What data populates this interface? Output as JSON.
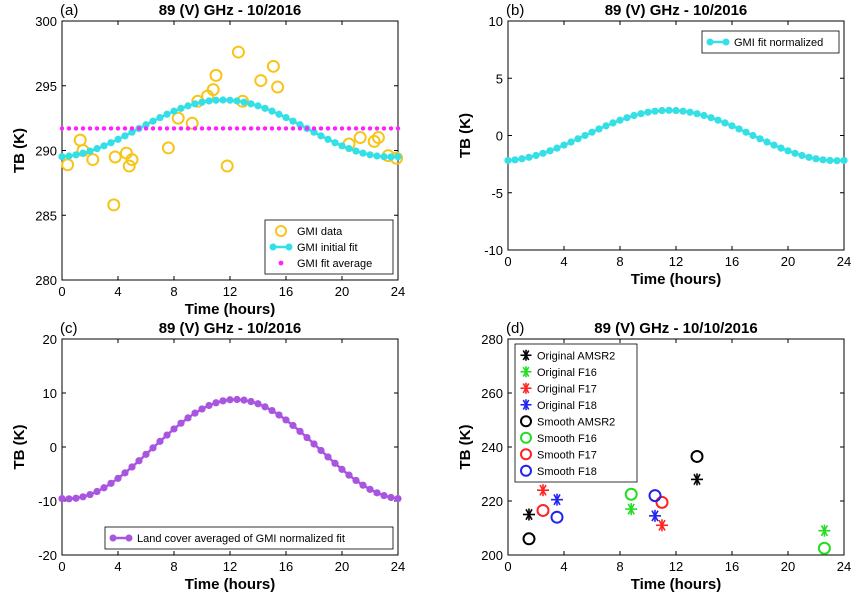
{
  "chart_data": [
    {
      "panel": "(a)",
      "type": "line",
      "title": "89 (V) GHz - 10/2016",
      "xlabel": "Time (hours)",
      "ylabel": "TB (K)",
      "xlim": [
        0,
        24
      ],
      "ylim": [
        280,
        300
      ],
      "xticks": [
        0,
        4,
        8,
        12,
        16,
        20,
        24
      ],
      "yticks": [
        280,
        285,
        290,
        295,
        300
      ],
      "legend_position": "bottom-right",
      "series": [
        {
          "name": "GMI data",
          "kind": "scatter",
          "color": "#f7c519",
          "marker": "circle-open",
          "x": [
            0.4,
            1.3,
            1.5,
            2.2,
            3.7,
            3.8,
            4.6,
            4.8,
            5.0,
            7.6,
            8.3,
            9.3,
            9.7,
            10.4,
            10.8,
            11.0,
            11.8,
            12.6,
            12.9,
            14.2,
            15.1,
            15.4,
            20.5,
            21.3,
            22.3,
            22.6,
            23.3,
            23.9
          ],
          "y": [
            288.9,
            290.8,
            290.0,
            289.3,
            285.8,
            289.5,
            289.8,
            288.8,
            289.3,
            290.2,
            292.5,
            292.1,
            293.8,
            294.2,
            294.7,
            295.8,
            288.8,
            297.6,
            293.8,
            295.4,
            296.5,
            294.9,
            290.5,
            291.0,
            290.7,
            291.0,
            289.6,
            289.4
          ]
        },
        {
          "name": "GMI initial fit",
          "kind": "line-marker",
          "color": "#34e0e6",
          "marker": "circle-filled",
          "mean": 291.7,
          "amplitude": 2.2,
          "phase_hours": 11.5
        },
        {
          "name": "GMI fit average",
          "kind": "marker-line",
          "color": "#ff22ff",
          "marker": "dot",
          "value": 291.7
        }
      ]
    },
    {
      "panel": "(b)",
      "type": "line",
      "title": "89 (V) GHz - 10/2016",
      "xlabel": "Time (hours)",
      "ylabel": "TB (K)",
      "xlim": [
        0,
        24
      ],
      "ylim": [
        -10,
        10
      ],
      "xticks": [
        0,
        4,
        8,
        12,
        16,
        20,
        24
      ],
      "yticks": [
        -10,
        -5,
        0,
        5,
        10
      ],
      "legend_position": "top-right",
      "series": [
        {
          "name": "GMI fit normalized",
          "kind": "line-marker",
          "color": "#34e0e6",
          "marker": "circle-filled",
          "mean": 0,
          "amplitude": 2.2,
          "phase_hours": 11.5
        }
      ]
    },
    {
      "panel": "(c)",
      "type": "line",
      "title": "89 (V) GHz - 10/2016",
      "xlabel": "Time (hours)",
      "ylabel": "TB (K)",
      "xlim": [
        0,
        24
      ],
      "ylim": [
        -20,
        20
      ],
      "xticks": [
        0,
        4,
        8,
        12,
        16,
        20,
        24
      ],
      "yticks": [
        -20,
        -10,
        0,
        10,
        20
      ],
      "legend_position": "bottom-right",
      "series": [
        {
          "name": "Land cover averaged of GMI normalized fit",
          "kind": "line-marker",
          "color": "#a855e0",
          "marker": "circle-filled",
          "mean": -0.4,
          "amplitude": 9.2,
          "phase_hours": 12.4
        }
      ]
    },
    {
      "panel": "(d)",
      "type": "scatter",
      "title": "89 (V) GHz - 10/10/2016",
      "xlabel": "Time (hours)",
      "ylabel": "TB (K)",
      "xlim": [
        0,
        24
      ],
      "ylim": [
        200,
        280
      ],
      "xticks": [
        0,
        4,
        8,
        12,
        16,
        20,
        24
      ],
      "yticks": [
        200,
        220,
        240,
        260,
        280
      ],
      "legend_position": "top-left",
      "series": [
        {
          "name": "Original AMSR2",
          "marker": "star",
          "color": "#000000",
          "x": [
            1.5,
            13.5
          ],
          "y": [
            215,
            228
          ]
        },
        {
          "name": "Original F16",
          "marker": "star",
          "color": "#22dd22",
          "x": [
            8.8,
            22.6
          ],
          "y": [
            217,
            209
          ]
        },
        {
          "name": "Original F17",
          "marker": "star",
          "color": "#ff2222",
          "x": [
            2.5,
            11.0
          ],
          "y": [
            224,
            211
          ]
        },
        {
          "name": "Original F18",
          "marker": "star",
          "color": "#2222ee",
          "x": [
            3.5,
            10.5
          ],
          "y": [
            220.5,
            214.5
          ]
        },
        {
          "name": "Smooth AMSR2",
          "marker": "circle-open",
          "color": "#000000",
          "x": [
            1.5,
            13.5
          ],
          "y": [
            206,
            236.5
          ]
        },
        {
          "name": "Smooth F16",
          "marker": "circle-open",
          "color": "#22dd22",
          "x": [
            8.8,
            22.6
          ],
          "y": [
            222.5,
            202.5
          ]
        },
        {
          "name": "Smooth F17",
          "marker": "circle-open",
          "color": "#ff2222",
          "x": [
            2.5,
            11.0
          ],
          "y": [
            216.5,
            219.5
          ]
        },
        {
          "name": "Smooth F18",
          "marker": "circle-open",
          "color": "#2222ee",
          "x": [
            3.5,
            10.5
          ],
          "y": [
            214,
            222
          ]
        }
      ]
    }
  ]
}
